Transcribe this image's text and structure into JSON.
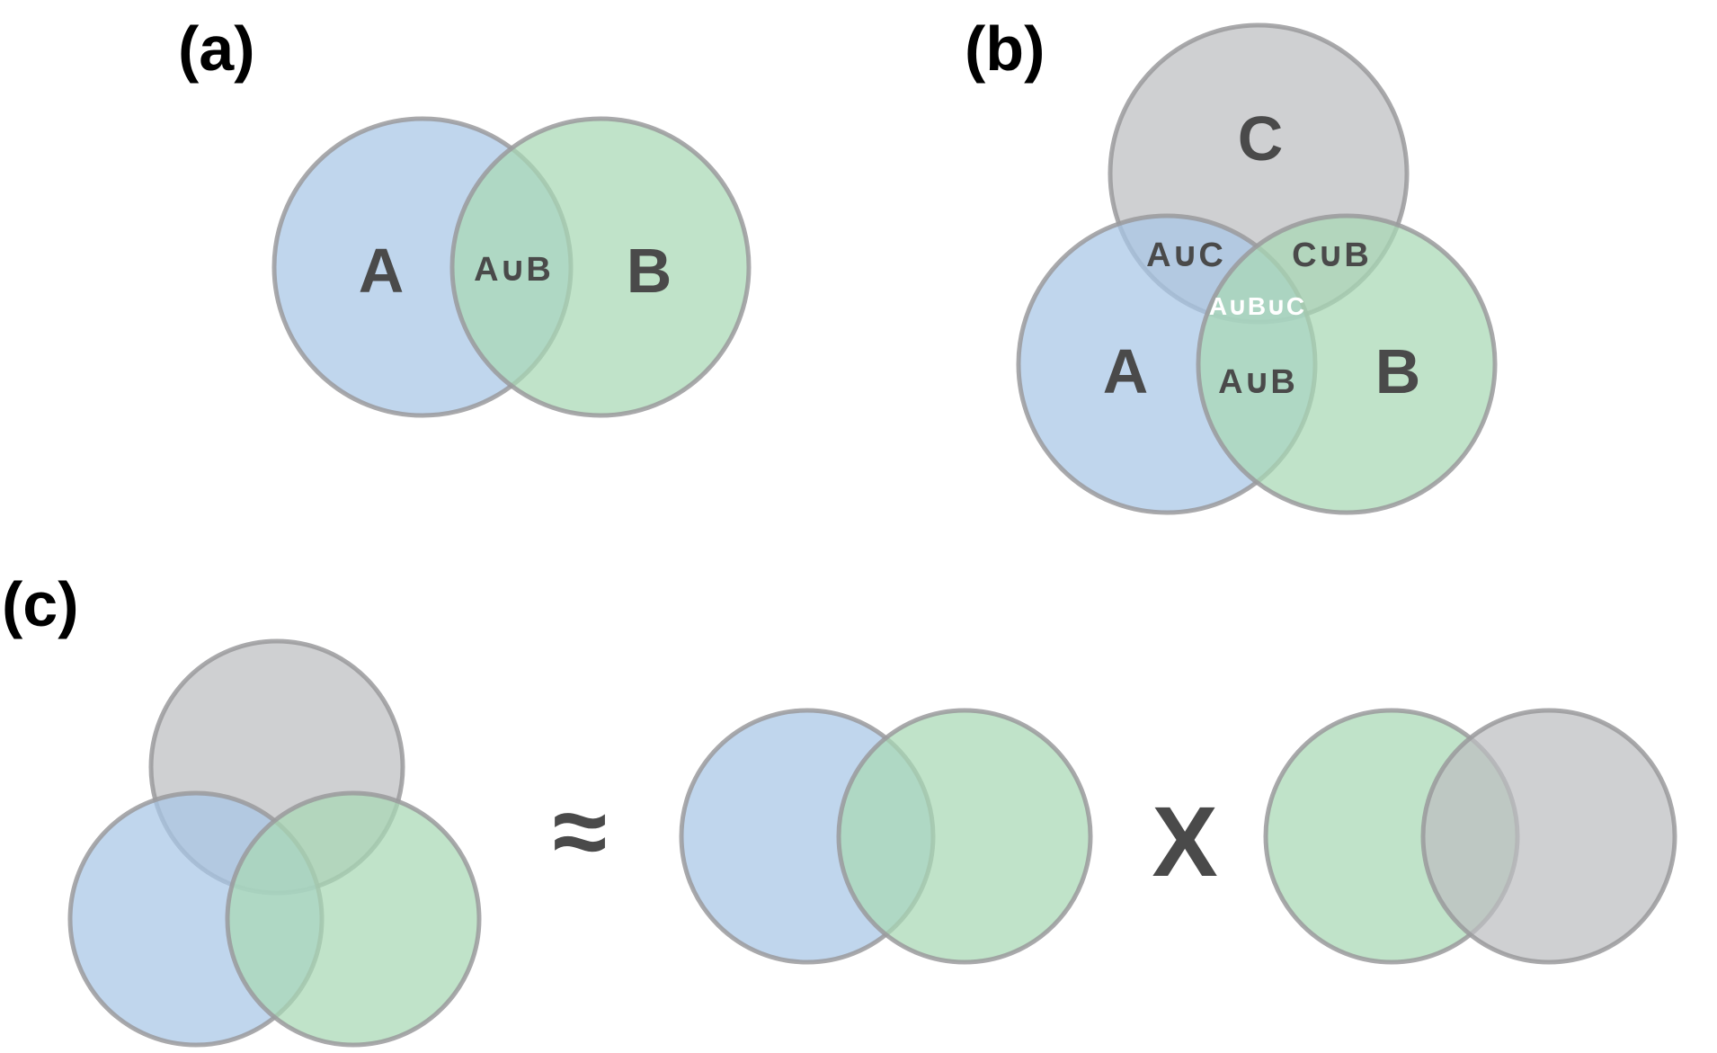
{
  "panels": {
    "a": {
      "label": "(a)"
    },
    "b": {
      "label": "(b)"
    },
    "c": {
      "label": "(c)"
    }
  },
  "sets": {
    "a": {
      "A": "A",
      "B": "B",
      "AB": "A∪B"
    },
    "b": {
      "A": "A",
      "B": "B",
      "C": "C",
      "AB": "A∪B",
      "AC": "A∪C",
      "CB": "C∪B",
      "ABC": "A∪B∪C"
    }
  },
  "operators": {
    "approx": "≈",
    "times": "X"
  },
  "colors": {
    "set_a": "#a8c6e6",
    "set_b": "#a8d8b4",
    "set_c": "#bcbec0",
    "outline": "#9a9a9c",
    "label": "#4a4a4a",
    "triple_label": "#ffffff"
  }
}
